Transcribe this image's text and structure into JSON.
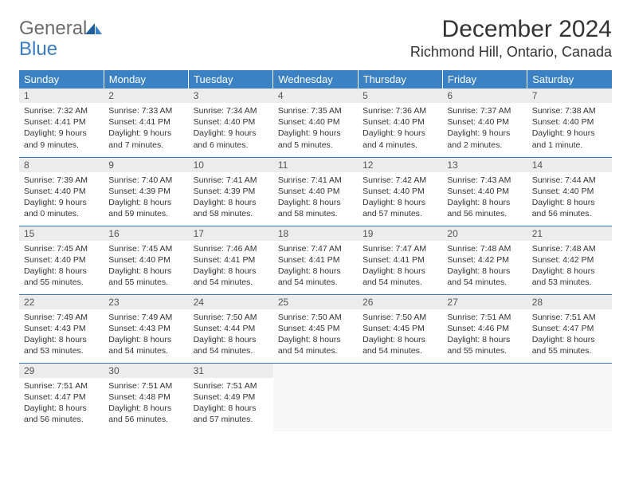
{
  "brand": {
    "text1": "General",
    "text2": "Blue"
  },
  "title": "December 2024",
  "location": "Richmond Hill, Ontario, Canada",
  "colors": {
    "header_bg": "#3b82c4",
    "header_text": "#ffffff",
    "daynum_bg": "#ececec",
    "border": "#3b7bbf",
    "logo_gray": "#6b6b6b",
    "logo_blue": "#3b7bbf"
  },
  "weekdays": [
    "Sunday",
    "Monday",
    "Tuesday",
    "Wednesday",
    "Thursday",
    "Friday",
    "Saturday"
  ],
  "days": [
    {
      "n": 1,
      "sunrise": "7:32 AM",
      "sunset": "4:41 PM",
      "daylight": "9 hours and 9 minutes."
    },
    {
      "n": 2,
      "sunrise": "7:33 AM",
      "sunset": "4:41 PM",
      "daylight": "9 hours and 7 minutes."
    },
    {
      "n": 3,
      "sunrise": "7:34 AM",
      "sunset": "4:40 PM",
      "daylight": "9 hours and 6 minutes."
    },
    {
      "n": 4,
      "sunrise": "7:35 AM",
      "sunset": "4:40 PM",
      "daylight": "9 hours and 5 minutes."
    },
    {
      "n": 5,
      "sunrise": "7:36 AM",
      "sunset": "4:40 PM",
      "daylight": "9 hours and 4 minutes."
    },
    {
      "n": 6,
      "sunrise": "7:37 AM",
      "sunset": "4:40 PM",
      "daylight": "9 hours and 2 minutes."
    },
    {
      "n": 7,
      "sunrise": "7:38 AM",
      "sunset": "4:40 PM",
      "daylight": "9 hours and 1 minute."
    },
    {
      "n": 8,
      "sunrise": "7:39 AM",
      "sunset": "4:40 PM",
      "daylight": "9 hours and 0 minutes."
    },
    {
      "n": 9,
      "sunrise": "7:40 AM",
      "sunset": "4:39 PM",
      "daylight": "8 hours and 59 minutes."
    },
    {
      "n": 10,
      "sunrise": "7:41 AM",
      "sunset": "4:39 PM",
      "daylight": "8 hours and 58 minutes."
    },
    {
      "n": 11,
      "sunrise": "7:41 AM",
      "sunset": "4:40 PM",
      "daylight": "8 hours and 58 minutes."
    },
    {
      "n": 12,
      "sunrise": "7:42 AM",
      "sunset": "4:40 PM",
      "daylight": "8 hours and 57 minutes."
    },
    {
      "n": 13,
      "sunrise": "7:43 AM",
      "sunset": "4:40 PM",
      "daylight": "8 hours and 56 minutes."
    },
    {
      "n": 14,
      "sunrise": "7:44 AM",
      "sunset": "4:40 PM",
      "daylight": "8 hours and 56 minutes."
    },
    {
      "n": 15,
      "sunrise": "7:45 AM",
      "sunset": "4:40 PM",
      "daylight": "8 hours and 55 minutes."
    },
    {
      "n": 16,
      "sunrise": "7:45 AM",
      "sunset": "4:40 PM",
      "daylight": "8 hours and 55 minutes."
    },
    {
      "n": 17,
      "sunrise": "7:46 AM",
      "sunset": "4:41 PM",
      "daylight": "8 hours and 54 minutes."
    },
    {
      "n": 18,
      "sunrise": "7:47 AM",
      "sunset": "4:41 PM",
      "daylight": "8 hours and 54 minutes."
    },
    {
      "n": 19,
      "sunrise": "7:47 AM",
      "sunset": "4:41 PM",
      "daylight": "8 hours and 54 minutes."
    },
    {
      "n": 20,
      "sunrise": "7:48 AM",
      "sunset": "4:42 PM",
      "daylight": "8 hours and 54 minutes."
    },
    {
      "n": 21,
      "sunrise": "7:48 AM",
      "sunset": "4:42 PM",
      "daylight": "8 hours and 53 minutes."
    },
    {
      "n": 22,
      "sunrise": "7:49 AM",
      "sunset": "4:43 PM",
      "daylight": "8 hours and 53 minutes."
    },
    {
      "n": 23,
      "sunrise": "7:49 AM",
      "sunset": "4:43 PM",
      "daylight": "8 hours and 54 minutes."
    },
    {
      "n": 24,
      "sunrise": "7:50 AM",
      "sunset": "4:44 PM",
      "daylight": "8 hours and 54 minutes."
    },
    {
      "n": 25,
      "sunrise": "7:50 AM",
      "sunset": "4:45 PM",
      "daylight": "8 hours and 54 minutes."
    },
    {
      "n": 26,
      "sunrise": "7:50 AM",
      "sunset": "4:45 PM",
      "daylight": "8 hours and 54 minutes."
    },
    {
      "n": 27,
      "sunrise": "7:51 AM",
      "sunset": "4:46 PM",
      "daylight": "8 hours and 55 minutes."
    },
    {
      "n": 28,
      "sunrise": "7:51 AM",
      "sunset": "4:47 PM",
      "daylight": "8 hours and 55 minutes."
    },
    {
      "n": 29,
      "sunrise": "7:51 AM",
      "sunset": "4:47 PM",
      "daylight": "8 hours and 56 minutes."
    },
    {
      "n": 30,
      "sunrise": "7:51 AM",
      "sunset": "4:48 PM",
      "daylight": "8 hours and 56 minutes."
    },
    {
      "n": 31,
      "sunrise": "7:51 AM",
      "sunset": "4:49 PM",
      "daylight": "8 hours and 57 minutes."
    }
  ],
  "labels": {
    "sunrise": "Sunrise:",
    "sunset": "Sunset:",
    "daylight": "Daylight:"
  },
  "layout": {
    "first_weekday_offset": 0,
    "weeks": 5,
    "cols": 7
  }
}
